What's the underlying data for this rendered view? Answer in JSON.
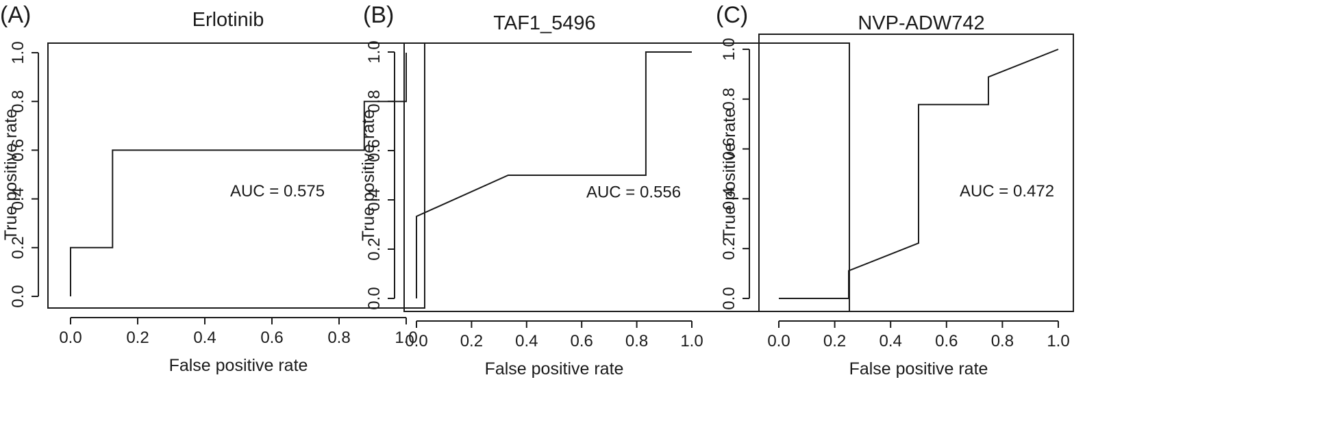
{
  "chart_data": [
    {
      "panel": "(A)",
      "type": "line",
      "title": "Erlotinib",
      "xlabel": "False positive rate",
      "ylabel": "True positive rate",
      "xlim": [
        0,
        1
      ],
      "ylim": [
        0,
        1
      ],
      "xticks": [
        "0.0",
        "0.2",
        "0.4",
        "0.6",
        "0.8",
        "1.0"
      ],
      "yticks": [
        "0.0",
        "0.2",
        "0.4",
        "0.6",
        "0.8",
        "1.0"
      ],
      "annotation": "AUC = 0.575",
      "grid": false,
      "series": [
        {
          "x": [
            0,
            0,
            0.125,
            0.125,
            0.875,
            0.875,
            1,
            1
          ],
          "y": [
            0,
            0.2,
            0.2,
            0.6,
            0.6,
            0.8,
            0.8,
            1.0
          ]
        }
      ]
    },
    {
      "panel": "(B)",
      "type": "line",
      "title": "TAF1_5496",
      "xlabel": "False positive rate",
      "ylabel": "True positive rate",
      "xlim": [
        0,
        1
      ],
      "ylim": [
        0,
        1
      ],
      "xticks": [
        "0.0",
        "0.2",
        "0.4",
        "0.6",
        "0.8",
        "1.0"
      ],
      "yticks": [
        "0.0",
        "0.2",
        "0.4",
        "0.6",
        "0.8",
        "1.0"
      ],
      "annotation": "AUC = 0.556",
      "grid": false,
      "series": [
        {
          "x": [
            0,
            0,
            0.333,
            0.833,
            0.833,
            1
          ],
          "y": [
            0,
            0.333,
            0.5,
            0.5,
            1.0,
            1.0
          ]
        }
      ]
    },
    {
      "panel": "(C)",
      "type": "line",
      "title": "NVP-ADW742",
      "xlabel": "False positive rate",
      "ylabel": "True positive rate",
      "xlim": [
        0,
        1
      ],
      "ylim": [
        0,
        1
      ],
      "xticks": [
        "0.0",
        "0.2",
        "0.4",
        "0.6",
        "0.8",
        "1.0"
      ],
      "yticks": [
        "0.0",
        "0.2",
        "0.4",
        "0.6",
        "0.8",
        "1.0"
      ],
      "annotation": "AUC = 0.472",
      "grid": false,
      "series": [
        {
          "x": [
            0,
            0.25,
            0.25,
            0.5,
            0.5,
            0.75,
            0.75,
            1
          ],
          "y": [
            0,
            0,
            0.111,
            0.222,
            0.778,
            0.778,
            0.889,
            1.0
          ]
        }
      ]
    }
  ]
}
